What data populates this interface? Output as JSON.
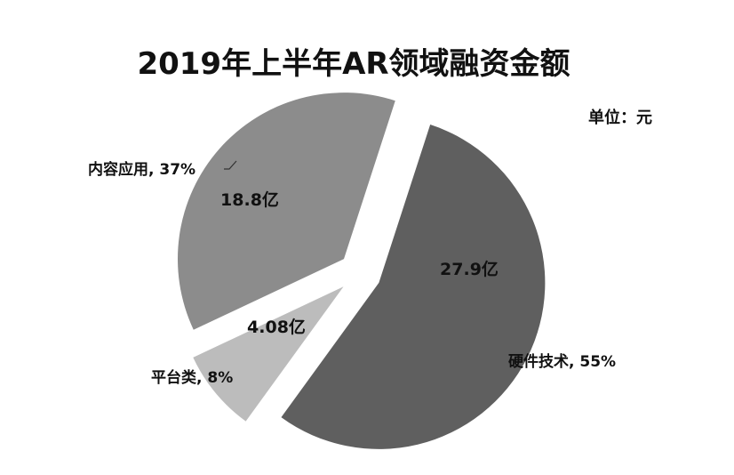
{
  "title": "2019年上半年AR领域融资金额",
  "unit_label": "单位：元",
  "chart_data": {
    "type": "pie",
    "title": "2019年上半年AR领域融资金额",
    "unit": "单位：元",
    "slices": [
      {
        "name": "硬件技术",
        "percent": 55,
        "value": 27.9,
        "value_label": "27.9亿",
        "label": "硬件技术, 55%",
        "color": "#5f5f5f"
      },
      {
        "name": "平台类",
        "percent": 8,
        "value": 4.08,
        "value_label": "4.08亿",
        "label": "平台类, 8%",
        "color": "#bcbcbc"
      },
      {
        "name": "内容应用",
        "percent": 37,
        "value": 18.8,
        "value_label": "18.8亿",
        "label": "内容应用, 37%",
        "color": "#8c8c8c"
      }
    ],
    "legend": "none",
    "exploded": true
  }
}
